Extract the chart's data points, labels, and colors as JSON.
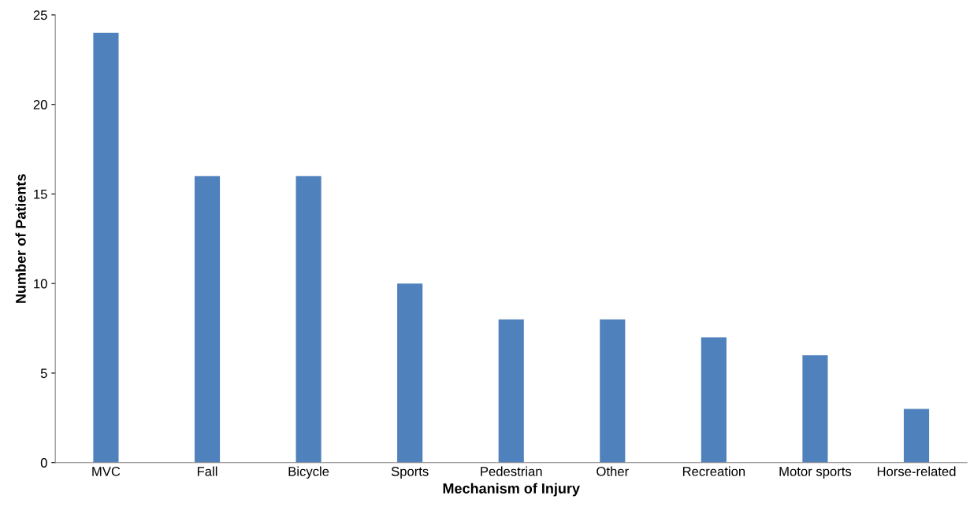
{
  "chart_data": {
    "type": "bar",
    "xlabel": "Mechanism of Injury",
    "ylabel": "Number of Patients",
    "categories": [
      "MVC",
      "Fall",
      "Bicycle",
      "Sports",
      "Pedestrian",
      "Other",
      "Recreation",
      "Motor sports",
      "Horse-related"
    ],
    "values": [
      24,
      16,
      16,
      10,
      8,
      8,
      7,
      6,
      3
    ],
    "color": "#4f81bd",
    "ylim": [
      0,
      25
    ],
    "yticks": [
      0,
      5,
      10,
      15,
      20,
      25
    ],
    "grid": false,
    "legend": false
  }
}
